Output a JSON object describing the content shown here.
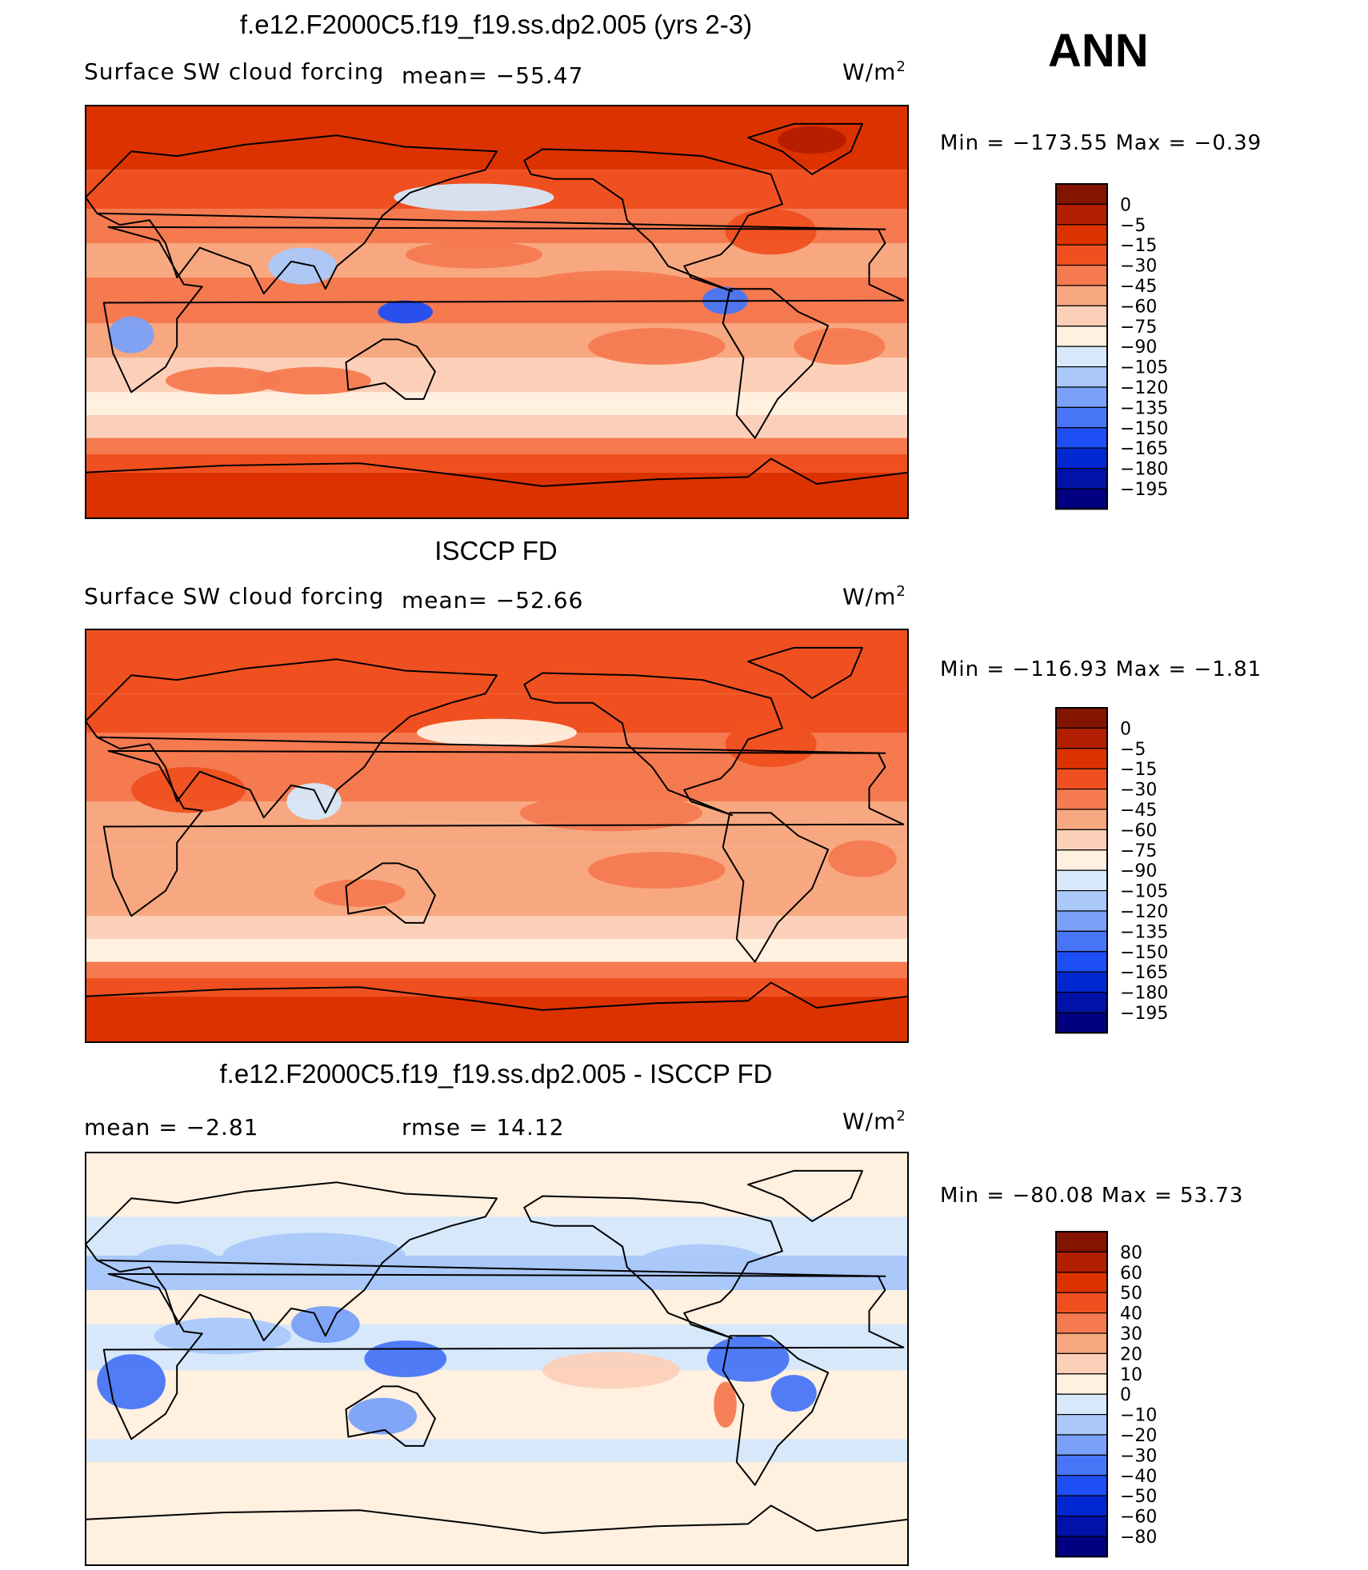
{
  "season": "ANN",
  "units_label": "W/m",
  "units_sup": "2",
  "colors": {
    "levels14": [
      "#000080",
      "#0012a8",
      "#0028d2",
      "#1e4ef5",
      "#4875f5",
      "#7aa0f8",
      "#aac8fa",
      "#d6e8fa",
      "#fff0e0",
      "#fcd0b8",
      "#f8a880",
      "#f57a50",
      "#f05020",
      "#dc3200",
      "#b41e00",
      "#821400"
    ]
  },
  "chart_data": [
    {
      "type": "heatmap",
      "title": "f.e12.F2000C5.f19_f19.ss.dp2.005 (yrs 2-3)",
      "variable": "Surface SW cloud forcing",
      "mean_text": "mean= −55.47",
      "units": "W/m2",
      "min_text": "Min  =  −173.55  Max  =    −0.39",
      "colorbar_labels": [
        "0",
        "−5",
        "−15",
        "−30",
        "−45",
        "−60",
        "−75",
        "−90",
        "−105",
        "−120",
        "−135",
        "−150",
        "−165",
        "−180",
        "−195"
      ]
    },
    {
      "type": "heatmap",
      "title": "ISCCP FD",
      "variable": "Surface SW cloud forcing",
      "mean_text": "mean= −52.66",
      "units": "W/m2",
      "min_text": "Min  =  −116.93  Max  =    −1.81",
      "colorbar_labels": [
        "0",
        "−5",
        "−15",
        "−30",
        "−45",
        "−60",
        "−75",
        "−90",
        "−105",
        "−120",
        "−135",
        "−150",
        "−165",
        "−180",
        "−195"
      ]
    },
    {
      "type": "heatmap",
      "title": "f.e12.F2000C5.f19_f19.ss.dp2.005 - ISCCP FD",
      "mean_text": "mean  =    −2.81",
      "rmse_text": "rmse  =    14.12",
      "units": "W/m2",
      "min_text": "Min  =  −80.08  Max  =    53.73",
      "colorbar_labels": [
        "80",
        "60",
        "50",
        "40",
        "30",
        "20",
        "10",
        "0",
        "−10",
        "−20",
        "−30",
        "−40",
        "−50",
        "−60",
        "−80"
      ]
    }
  ]
}
